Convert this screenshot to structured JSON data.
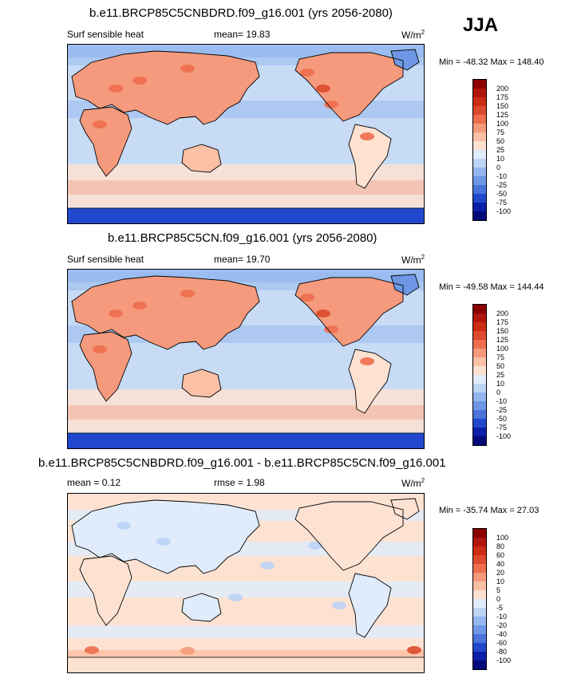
{
  "season": "JJA",
  "panels": [
    {
      "id": "model1",
      "title": "b.e11.BRCP85C5CNBDRD.f09_g16.001 (yrs 2056-2080)",
      "variable": "Surf sensible heat",
      "stat": "mean=  19.83",
      "units": "W/m",
      "units_exp": "2",
      "minmax": "Min = -48.32 Max = 148.40",
      "levels": [
        "200",
        "175",
        "150",
        "125",
        "100",
        "75",
        "50",
        "25",
        "10",
        "0",
        "-10",
        "-25",
        "-50",
        "-75",
        "-100"
      ],
      "colors": [
        "#8b0000",
        "#b0160c",
        "#cc2b14",
        "#de4a2c",
        "#ee6e4e",
        "#f59a7c",
        "#fbc0a6",
        "#fde2d2",
        "#e0ecfb",
        "#bdd4f5",
        "#93b6ee",
        "#6e98e6",
        "#4874dc",
        "#2148cc",
        "#0b1ea8",
        "#020a7a"
      ],
      "chart_data": {
        "type": "heatmap",
        "title": "b.e11.BRCP85C5CNBDRD.f09_g16.001 (yrs 2056-2080)",
        "variable": "Surf sensible heat",
        "units": "W/m2",
        "mean": 19.83,
        "min": -48.32,
        "max": 148.4,
        "levels": [
          -100,
          -75,
          -50,
          -25,
          -10,
          0,
          10,
          25,
          50,
          75,
          100,
          125,
          150,
          175,
          200
        ]
      }
    },
    {
      "id": "model2",
      "title": "b.e11.BRCP85C5CN.f09_g16.001 (yrs 2056-2080)",
      "variable": "Surf sensible heat",
      "stat": "mean=  19.70",
      "units": "W/m",
      "units_exp": "2",
      "minmax": "Min = -49.58 Max = 144.44",
      "levels": [
        "200",
        "175",
        "150",
        "125",
        "100",
        "75",
        "50",
        "25",
        "10",
        "0",
        "-10",
        "-25",
        "-50",
        "-75",
        "-100"
      ],
      "colors": [
        "#8b0000",
        "#b0160c",
        "#cc2b14",
        "#de4a2c",
        "#ee6e4e",
        "#f59a7c",
        "#fbc0a6",
        "#fde2d2",
        "#e0ecfb",
        "#bdd4f5",
        "#93b6ee",
        "#6e98e6",
        "#4874dc",
        "#2148cc",
        "#0b1ea8",
        "#020a7a"
      ],
      "chart_data": {
        "type": "heatmap",
        "title": "b.e11.BRCP85C5CN.f09_g16.001 (yrs 2056-2080)",
        "variable": "Surf sensible heat",
        "units": "W/m2",
        "mean": 19.7,
        "min": -49.58,
        "max": 144.44,
        "levels": [
          -100,
          -75,
          -50,
          -25,
          -10,
          0,
          10,
          25,
          50,
          75,
          100,
          125,
          150,
          175,
          200
        ]
      }
    },
    {
      "id": "difference",
      "title": "b.e11.BRCP85C5CNBDRD.f09_g16.001 - b.e11.BRCP85C5CN.f09_g16.001",
      "variable": "mean =  0.12",
      "stat": "rmse =  1.98",
      "units": "W/m",
      "units_exp": "2",
      "minmax": "Min = -35.74 Max = 27.03",
      "levels": [
        "100",
        "80",
        "60",
        "40",
        "20",
        "10",
        "5",
        "0",
        "-5",
        "-10",
        "-20",
        "-40",
        "-60",
        "-80",
        "-100"
      ],
      "colors": [
        "#8b0000",
        "#b0160c",
        "#cc2b14",
        "#de4a2c",
        "#ee6e4e",
        "#f59a7c",
        "#fbc0a6",
        "#fde2d2",
        "#e0ecfb",
        "#bdd4f5",
        "#93b6ee",
        "#6e98e6",
        "#4874dc",
        "#2148cc",
        "#0b1ea8",
        "#020a7a"
      ],
      "chart_data": {
        "type": "heatmap",
        "title": "b.e11.BRCP85C5CNBDRD.f09_g16.001 - b.e11.BRCP85C5CN.f09_g16.001",
        "units": "W/m2",
        "mean": 0.12,
        "rmse": 1.98,
        "min": -35.74,
        "max": 27.03,
        "levels": [
          -100,
          -80,
          -60,
          -40,
          -20,
          -10,
          -5,
          0,
          5,
          10,
          20,
          40,
          60,
          80,
          100
        ]
      }
    }
  ]
}
